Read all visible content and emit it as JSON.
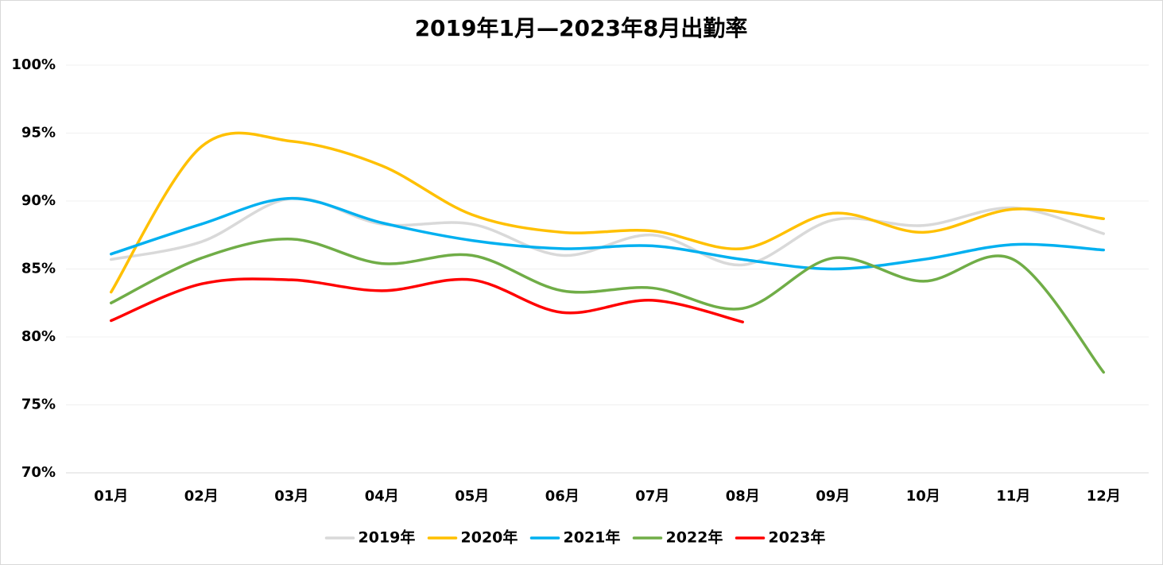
{
  "chart_data": {
    "type": "line",
    "title": "2019年1月—2023年8月出勤率",
    "categories": [
      "01月",
      "02月",
      "03月",
      "04月",
      "05月",
      "06月",
      "07月",
      "08月",
      "09月",
      "10月",
      "11月",
      "12月"
    ],
    "series": [
      {
        "name": "2019年",
        "color": "#d9d9d9",
        "values": [
          85.7,
          87.0,
          90.2,
          88.3,
          88.3,
          86.0,
          87.5,
          85.3,
          88.6,
          88.2,
          89.5,
          87.6
        ]
      },
      {
        "name": "2020年",
        "color": "#ffc000",
        "values": [
          83.3,
          94.0,
          94.4,
          92.6,
          89.0,
          87.7,
          87.8,
          86.5,
          89.1,
          87.7,
          89.4,
          88.7
        ]
      },
      {
        "name": "2021年",
        "color": "#00b0f0",
        "values": [
          86.1,
          88.3,
          90.2,
          88.4,
          87.1,
          86.5,
          86.7,
          85.7,
          85.0,
          85.7,
          86.8,
          86.4
        ]
      },
      {
        "name": "2022年",
        "color": "#70ad47",
        "values": [
          82.5,
          85.8,
          87.2,
          85.4,
          86.0,
          83.4,
          83.6,
          82.1,
          85.8,
          84.1,
          85.7,
          77.4
        ]
      },
      {
        "name": "2023年",
        "color": "#ff0000",
        "values": [
          81.2,
          83.9,
          84.2,
          83.4,
          84.2,
          81.8,
          82.7,
          81.1,
          null,
          null,
          null,
          null
        ]
      }
    ],
    "ylim": [
      70,
      100
    ],
    "yticks": [
      {
        "value": 70,
        "label": "70%"
      },
      {
        "value": 75,
        "label": "75%"
      },
      {
        "value": 80,
        "label": "80%"
      },
      {
        "value": 85,
        "label": "85%"
      },
      {
        "value": 90,
        "label": "90%"
      },
      {
        "value": 95,
        "label": "95%"
      },
      {
        "value": 100,
        "label": "100%"
      }
    ],
    "grid": true,
    "legend": "bottom"
  }
}
